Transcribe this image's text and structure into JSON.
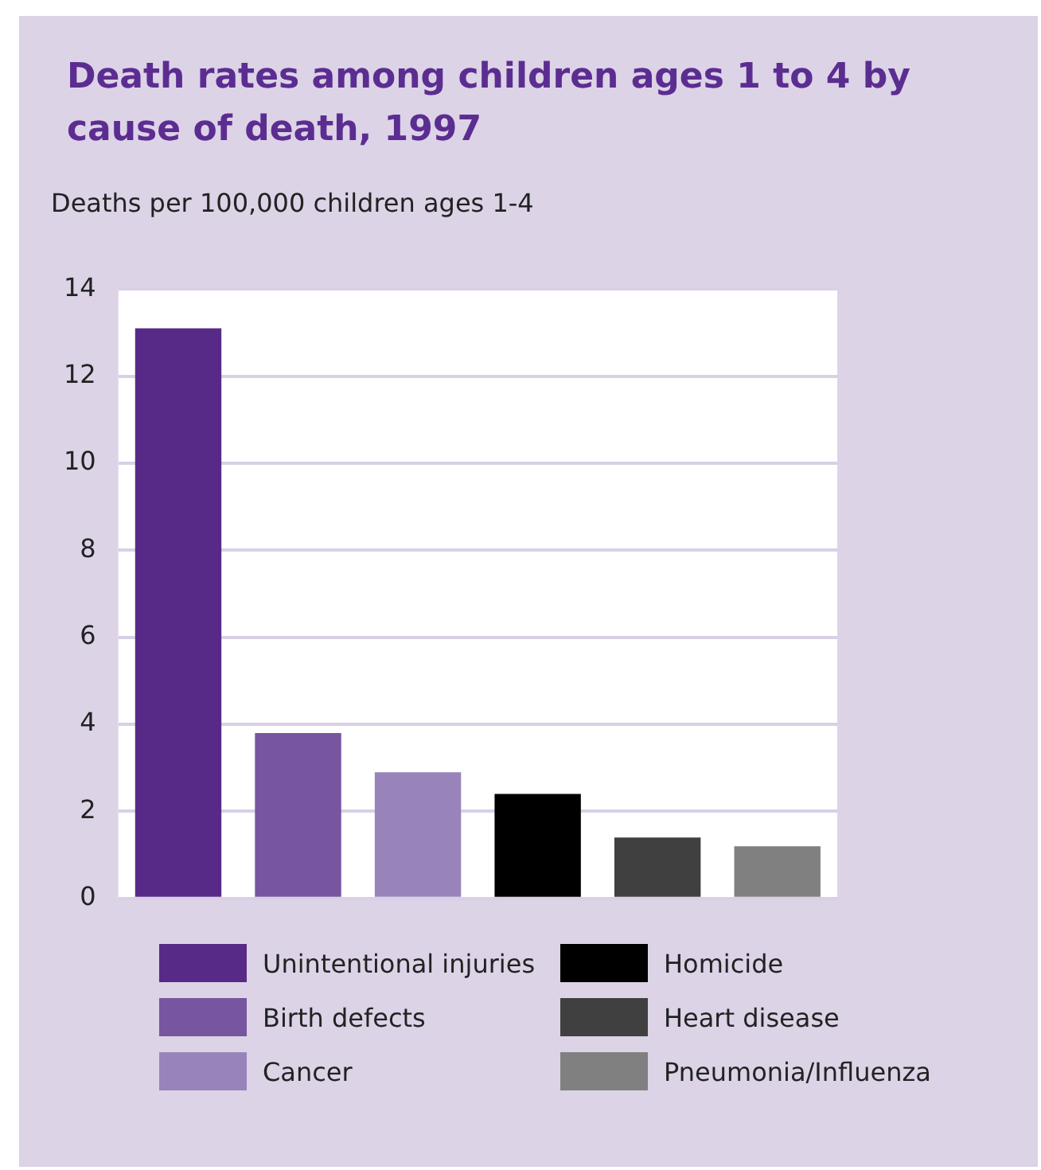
{
  "chart_data": {
    "type": "bar",
    "title": "Death rates among children ages 1 to 4 by cause of death, 1997",
    "ylabel": "Deaths per 100,000 children ages 1-4",
    "categories": [
      null,
      null,
      null,
      null,
      null,
      null
    ],
    "series": [
      {
        "name": "Unintentional injuries",
        "color": "#582a88",
        "values": [
          13.1,
          null,
          null,
          null,
          null,
          null
        ]
      },
      {
        "name": "Birth defects",
        "color": "#77559f",
        "values": [
          null,
          3.8,
          null,
          null,
          null,
          null
        ]
      },
      {
        "name": "Cancer",
        "color": "#9983bb",
        "values": [
          null,
          null,
          2.9,
          null,
          null,
          null
        ]
      },
      {
        "name": "Homicide",
        "color": "#000000",
        "values": [
          null,
          null,
          null,
          2.4,
          null,
          null
        ]
      },
      {
        "name": "Heart disease",
        "color": "#404040",
        "values": [
          null,
          null,
          null,
          null,
          1.4,
          null
        ]
      },
      {
        "name": "Pneumonia/Influenza",
        "color": "#808080",
        "values": [
          null,
          null,
          null,
          null,
          null,
          1.2
        ]
      }
    ],
    "ylim": [
      0,
      14
    ],
    "yticks": [
      0,
      2,
      4,
      6,
      8,
      10,
      12,
      14
    ],
    "grid": "y",
    "legend": "bottom"
  }
}
